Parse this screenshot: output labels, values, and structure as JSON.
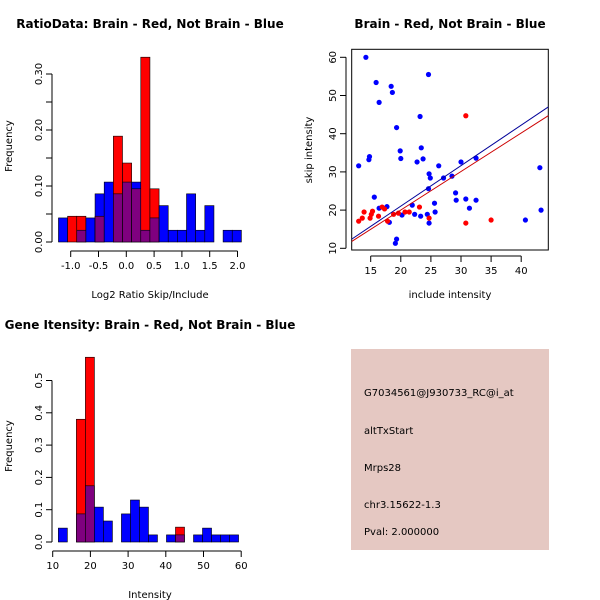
{
  "colors": {
    "red": "#ff0000",
    "blue": "#0000ff",
    "overlap": "#7f007f",
    "info_bg": "#e5c8c2",
    "pval": "#a00000",
    "fit_blue": "#000099",
    "fit_red": "#cc0000"
  },
  "chart_data": [
    {
      "type": "bar",
      "subtype": "overlaid-histogram",
      "title": "RatioData: Brain - Red, Not Brain - Blue",
      "xlabel": "Log2 Ratio Skip/Include",
      "ylabel": "Frequency",
      "xlim": [
        -1.25,
        2.1
      ],
      "ylim": [
        0,
        0.33
      ],
      "xticks": [
        -1.0,
        -0.5,
        0.0,
        0.5,
        1.0,
        1.5,
        2.0
      ],
      "xtick_labels": [
        "-1.0",
        "-0.5",
        "0.0",
        "0.5",
        "1.0",
        "1.5",
        "2.0"
      ],
      "yticks": [
        0,
        0.05,
        0.1,
        0.15,
        0.2,
        0.25,
        0.3
      ],
      "ytick_labels": [
        "0.00",
        "",
        "0.10",
        "",
        "0.20",
        "",
        "0.30"
      ],
      "bin_start": -1.22,
      "bin_width": 0.1645,
      "series": [
        {
          "name": "Not Brain",
          "color": "blue",
          "values": [
            0.043,
            0,
            0.021,
            0.043,
            0.086,
            0.107,
            0.086,
            0.107,
            0.107,
            0.021,
            0.043,
            0.065,
            0.021,
            0.021,
            0.086,
            0.021,
            0.065,
            0,
            0.021,
            0.021
          ]
        },
        {
          "name": "Brain",
          "color": "red",
          "values": [
            0,
            0.046,
            0.046,
            0,
            0.046,
            0,
            0.189,
            0.141,
            0.095,
            0.33,
            0.095,
            0,
            0,
            0,
            0,
            0,
            0,
            0,
            0,
            0
          ]
        }
      ]
    },
    {
      "type": "scatter",
      "title": "Brain - Red, Not Brain - Blue",
      "xlabel": "include intensity",
      "ylabel": "skip intensity",
      "xlim": [
        11.85,
        44.5
      ],
      "ylim": [
        9.55,
        62.1
      ],
      "xticks": [
        15,
        20,
        25,
        30,
        35,
        40
      ],
      "xtick_labels": [
        "15",
        "20",
        "25",
        "30",
        "35",
        "40"
      ],
      "yticks": [
        10,
        20,
        30,
        40,
        50,
        60
      ],
      "ytick_labels": [
        "10",
        "20",
        "30",
        "40",
        "50",
        "60"
      ],
      "series": [
        {
          "name": "Not Brain",
          "color": "blue",
          "x": [
            14.2,
            24.6,
            15.9,
            18.4,
            18.6,
            16.4,
            23.2,
            19.3,
            19.9,
            23.4,
            20.0,
            14.8,
            14.7,
            13.0,
            22.7,
            23.7,
            30.0,
            32.5,
            26.3,
            24.7,
            24.9,
            27.1,
            28.5,
            24.6,
            29.1,
            29.2,
            30.8,
            32.5,
            15.6,
            17.7,
            16.4,
            21.9,
            25.6,
            31.4,
            25.7,
            24.4,
            22.3,
            23.3,
            20.2,
            18.1,
            24.7,
            19.3,
            19.1,
            43.1,
            43.3,
            40.7
          ],
          "y": [
            60.0,
            55.5,
            53.4,
            52.4,
            50.8,
            48.2,
            44.5,
            41.6,
            35.5,
            36.3,
            33.5,
            34.0,
            33.2,
            31.6,
            32.6,
            33.4,
            32.6,
            33.6,
            31.6,
            29.5,
            28.4,
            28.4,
            28.9,
            25.6,
            24.5,
            22.6,
            22.9,
            22.6,
            23.4,
            20.9,
            20.5,
            21.3,
            21.8,
            20.5,
            19.5,
            18.9,
            18.9,
            18.4,
            18.7,
            16.8,
            16.6,
            12.4,
            11.3,
            31.1,
            20.0,
            17.4
          ],
          "fit": {
            "intercept": -0.16,
            "slope": 1.06
          }
        },
        {
          "name": "Brain",
          "color": "red",
          "x": [
            30.8,
            13.0,
            13.6,
            13.9,
            14.9,
            15.1,
            15.3,
            16.3,
            16.9,
            17.3,
            17.8,
            18.8,
            19.6,
            20.7,
            21.4,
            23.1,
            24.7,
            30.8,
            35.0
          ],
          "y": [
            44.7,
            17.1,
            17.9,
            19.5,
            17.9,
            18.9,
            19.7,
            18.4,
            20.8,
            20.3,
            17.1,
            18.9,
            19.2,
            19.5,
            19.5,
            20.8,
            17.9,
            16.6,
            17.4
          ],
          "fit": {
            "intercept": -0.14,
            "slope": 1.008
          }
        }
      ]
    },
    {
      "type": "bar",
      "subtype": "overlaid-histogram",
      "title": "Gene Itensity: Brain - Red, Not Brain - Blue",
      "xlabel": "Intensity",
      "ylabel": "Frequency",
      "xlim": [
        10,
        62
      ],
      "ylim": [
        0,
        0.58
      ],
      "xticks": [
        10,
        20,
        30,
        40,
        50,
        60
      ],
      "xtick_labels": [
        "10",
        "20",
        "30",
        "40",
        "50",
        "60"
      ],
      "yticks": [
        0,
        0.1,
        0.2,
        0.3,
        0.4,
        0.5
      ],
      "ytick_labels": [
        "0.0",
        "0.1",
        "0.2",
        "0.3",
        "0.4",
        "0.5"
      ],
      "bin_start": 11.5,
      "bin_width": 2.39,
      "series": [
        {
          "name": "Not Brain",
          "color": "blue",
          "values": [
            0.043,
            0,
            0.087,
            0.174,
            0.108,
            0.065,
            0,
            0.087,
            0.13,
            0.108,
            0.022,
            0,
            0.022,
            0.022,
            0,
            0.022,
            0.043,
            0.022,
            0.022,
            0.022
          ]
        },
        {
          "name": "Brain",
          "color": "red",
          "values": [
            0,
            0,
            0.38,
            0.572,
            0,
            0,
            0,
            0,
            0,
            0,
            0,
            0,
            0,
            0.046,
            0,
            0,
            0,
            0,
            0,
            0
          ]
        }
      ]
    }
  ],
  "info": {
    "probe": "G7034561@J930733_RC@i_at",
    "event": "altTxStart",
    "gene": "Mrps28",
    "location": "chr3.15622-1.3",
    "pval": "Pval: 2.000000"
  }
}
